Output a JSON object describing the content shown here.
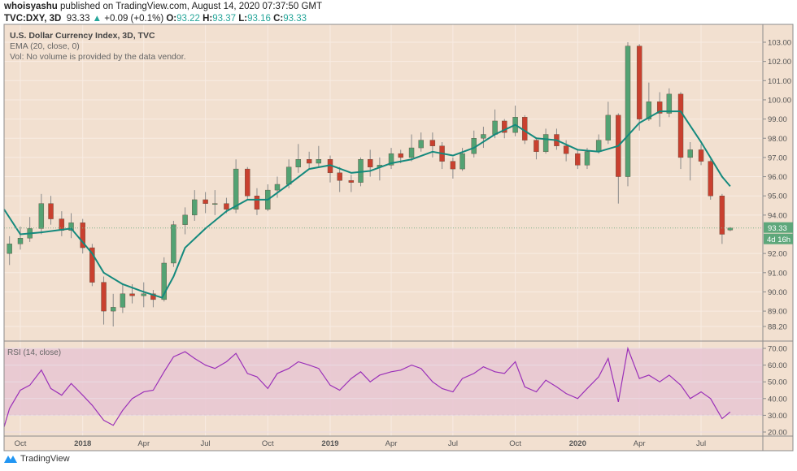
{
  "header": {
    "author": "whoisyashu",
    "published": "published on TradingView.com, August 14, 2020 07:37:50 GMT",
    "symbol": "TVC:DXY, 3D",
    "last": "93.33",
    "change": "+0.09 (+0.1%)",
    "o_label": "O:",
    "o": "93.22",
    "h_label": "H:",
    "h": "93.37",
    "l_label": "L:",
    "l": "93.16",
    "c_label": "C:",
    "c": "93.33"
  },
  "legend": {
    "title": "U.S. Dollar Currency Index, 3D, TVC",
    "ema": "EMA (20, close, 0)",
    "vol": "Vol: No volume is provided by the data vendor."
  },
  "rsi_label": "RSI (14, close)",
  "price_label": "93.33",
  "countdown_label": "4d 16h",
  "footer": {
    "brand": "TradingView"
  },
  "colors": {
    "background": "#f2e0d0",
    "up": "#53a273",
    "down": "#c9402f",
    "ema": "#14897d",
    "rsi": "#9b30b8",
    "rsi_band": "#e7c6d2"
  },
  "chart_data": [
    {
      "type": "candlestick",
      "title": "U.S. Dollar Currency Index, 3D, TVC",
      "ylim": [
        88.2,
        103.0
      ],
      "y_ticks": [
        "103.00",
        "102.00",
        "101.00",
        "100.00",
        "99.00",
        "98.00",
        "97.00",
        "96.00",
        "95.00",
        "94.00",
        "92.00",
        "91.00",
        "90.00",
        "89.00",
        "88.20"
      ],
      "x_ticks": [
        {
          "date": "2017-10-01",
          "label": "Oct"
        },
        {
          "date": "2018-01-01",
          "label": "2018"
        },
        {
          "date": "2018-04-01",
          "label": "Apr"
        },
        {
          "date": "2018-07-01",
          "label": "Jul"
        },
        {
          "date": "2018-10-01",
          "label": "Oct"
        },
        {
          "date": "2019-01-01",
          "label": "2019"
        },
        {
          "date": "2019-04-01",
          "label": "Apr"
        },
        {
          "date": "2019-07-01",
          "label": "Jul"
        },
        {
          "date": "2019-10-01",
          "label": "Oct"
        },
        {
          "date": "2020-01-01",
          "label": "2020"
        },
        {
          "date": "2020-04-01",
          "label": "Apr"
        },
        {
          "date": "2020-07-01",
          "label": "Jul"
        }
      ],
      "grid": true,
      "last_price": 93.33,
      "candles": [
        [
          "2017-09-15",
          92.0,
          92.9,
          91.4,
          92.5
        ],
        [
          "2017-10-01",
          92.5,
          93.4,
          92.2,
          92.8
        ],
        [
          "2017-10-15",
          92.8,
          93.9,
          92.6,
          93.3
        ],
        [
          "2017-11-01",
          93.3,
          95.1,
          93.0,
          94.6
        ],
        [
          "2017-11-15",
          94.6,
          95.0,
          93.5,
          93.8
        ],
        [
          "2017-12-01",
          93.8,
          94.2,
          92.9,
          93.2
        ],
        [
          "2017-12-15",
          93.2,
          94.1,
          92.8,
          93.6
        ],
        [
          "2018-01-01",
          93.6,
          93.8,
          92.0,
          92.3
        ],
        [
          "2018-01-15",
          92.3,
          92.5,
          90.3,
          90.5
        ],
        [
          "2018-02-01",
          90.5,
          90.8,
          88.3,
          89.0
        ],
        [
          "2018-02-15",
          89.0,
          89.9,
          88.2,
          89.2
        ],
        [
          "2018-03-01",
          89.2,
          90.4,
          88.9,
          89.9
        ],
        [
          "2018-03-15",
          89.9,
          90.4,
          89.4,
          89.8
        ],
        [
          "2018-04-01",
          89.8,
          90.5,
          89.2,
          89.9
        ],
        [
          "2018-04-15",
          89.9,
          90.1,
          89.2,
          89.6
        ],
        [
          "2018-05-01",
          89.6,
          91.8,
          89.5,
          91.5
        ],
        [
          "2018-05-15",
          91.5,
          93.7,
          91.3,
          93.5
        ],
        [
          "2018-06-01",
          93.5,
          94.4,
          93.0,
          94.0
        ],
        [
          "2018-06-15",
          94.0,
          95.3,
          93.7,
          94.8
        ],
        [
          "2018-07-01",
          94.8,
          95.2,
          94.1,
          94.6
        ],
        [
          "2018-07-15",
          94.6,
          95.3,
          94.0,
          94.6
        ],
        [
          "2018-08-01",
          94.6,
          94.9,
          94.1,
          94.3
        ],
        [
          "2018-08-15",
          94.3,
          96.9,
          94.1,
          96.4
        ],
        [
          "2018-09-01",
          96.4,
          96.5,
          94.8,
          95.0
        ],
        [
          "2018-09-15",
          95.0,
          95.4,
          94.0,
          94.3
        ],
        [
          "2018-10-01",
          94.3,
          95.6,
          94.2,
          95.3
        ],
        [
          "2018-10-15",
          95.3,
          96.0,
          94.9,
          95.6
        ],
        [
          "2018-11-01",
          95.6,
          96.9,
          95.4,
          96.5
        ],
        [
          "2018-11-15",
          96.5,
          97.7,
          96.2,
          96.9
        ],
        [
          "2018-12-01",
          96.9,
          97.3,
          96.4,
          96.7
        ],
        [
          "2018-12-15",
          96.7,
          97.6,
          96.5,
          96.9
        ],
        [
          "2019-01-01",
          96.9,
          97.1,
          95.7,
          96.2
        ],
        [
          "2019-01-15",
          96.2,
          96.5,
          95.2,
          95.8
        ],
        [
          "2019-02-01",
          95.8,
          96.1,
          95.2,
          95.7
        ],
        [
          "2019-02-15",
          95.7,
          97.0,
          95.5,
          96.9
        ],
        [
          "2019-03-01",
          96.9,
          97.4,
          96.0,
          96.5
        ],
        [
          "2019-03-15",
          96.5,
          97.0,
          95.8,
          96.6
        ],
        [
          "2019-04-01",
          96.6,
          97.5,
          96.4,
          97.2
        ],
        [
          "2019-04-15",
          97.2,
          97.4,
          96.7,
          97.0
        ],
        [
          "2019-05-01",
          97.0,
          98.2,
          96.8,
          97.5
        ],
        [
          "2019-05-15",
          97.5,
          98.3,
          97.3,
          97.9
        ],
        [
          "2019-06-01",
          97.9,
          98.3,
          97.0,
          97.6
        ],
        [
          "2019-06-15",
          97.6,
          97.8,
          96.4,
          96.8
        ],
        [
          "2019-07-01",
          96.8,
          97.0,
          95.9,
          96.4
        ],
        [
          "2019-07-15",
          96.4,
          97.5,
          96.3,
          97.2
        ],
        [
          "2019-08-01",
          97.2,
          98.4,
          97.0,
          98.0
        ],
        [
          "2019-08-15",
          98.0,
          98.6,
          97.5,
          98.2
        ],
        [
          "2019-09-01",
          98.2,
          99.5,
          98.0,
          98.9
        ],
        [
          "2019-09-15",
          98.9,
          99.0,
          98.0,
          98.3
        ],
        [
          "2019-10-01",
          98.3,
          99.7,
          98.1,
          99.1
        ],
        [
          "2019-10-15",
          99.1,
          99.2,
          97.7,
          97.9
        ],
        [
          "2019-11-01",
          97.9,
          98.0,
          96.9,
          97.3
        ],
        [
          "2019-11-15",
          97.3,
          98.5,
          97.2,
          98.2
        ],
        [
          "2019-12-01",
          98.2,
          98.5,
          97.4,
          97.6
        ],
        [
          "2019-12-15",
          97.6,
          97.9,
          96.8,
          97.2
        ],
        [
          "2020-01-01",
          97.2,
          97.4,
          96.4,
          96.6
        ],
        [
          "2020-01-15",
          96.6,
          97.5,
          96.4,
          97.3
        ],
        [
          "2020-02-01",
          97.3,
          98.2,
          97.2,
          97.9
        ],
        [
          "2020-02-15",
          97.9,
          99.9,
          97.7,
          99.2
        ],
        [
          "2020-03-01",
          99.2,
          99.3,
          94.6,
          96.0
        ],
        [
          "2020-03-15",
          96.0,
          103.0,
          95.5,
          102.8
        ],
        [
          "2020-04-01",
          102.8,
          102.9,
          98.4,
          99.0
        ],
        [
          "2020-04-15",
          99.0,
          100.9,
          98.9,
          99.9
        ],
        [
          "2020-05-01",
          99.9,
          100.4,
          98.6,
          99.3
        ],
        [
          "2020-05-15",
          99.3,
          100.6,
          99.1,
          100.3
        ],
        [
          "2020-06-01",
          100.3,
          100.4,
          96.4,
          97.0
        ],
        [
          "2020-06-15",
          97.0,
          97.8,
          95.8,
          97.4
        ],
        [
          "2020-07-01",
          97.4,
          97.7,
          96.6,
          96.8
        ],
        [
          "2020-07-15",
          96.8,
          96.9,
          94.8,
          95.0
        ],
        [
          "2020-08-01",
          95.0,
          95.1,
          92.5,
          93.0
        ],
        [
          "2020-08-13",
          93.22,
          93.37,
          93.16,
          93.33
        ]
      ],
      "ema": {
        "name": "EMA (20, close, 0)",
        "points": [
          [
            "2017-09-07",
            94.3
          ],
          [
            "2017-10-01",
            93.0
          ],
          [
            "2017-11-01",
            93.1
          ],
          [
            "2017-12-15",
            93.3
          ],
          [
            "2018-01-15",
            92.0
          ],
          [
            "2018-02-01",
            91.0
          ],
          [
            "2018-03-01",
            90.4
          ],
          [
            "2018-04-01",
            90.0
          ],
          [
            "2018-04-28",
            89.7
          ],
          [
            "2018-05-15",
            90.8
          ],
          [
            "2018-06-01",
            92.3
          ],
          [
            "2018-07-01",
            93.3
          ],
          [
            "2018-08-01",
            94.2
          ],
          [
            "2018-09-01",
            94.8
          ],
          [
            "2018-10-01",
            94.8
          ],
          [
            "2018-11-01",
            95.6
          ],
          [
            "2018-12-01",
            96.4
          ],
          [
            "2019-01-01",
            96.6
          ],
          [
            "2019-02-01",
            96.2
          ],
          [
            "2019-03-01",
            96.3
          ],
          [
            "2019-04-01",
            96.7
          ],
          [
            "2019-05-01",
            96.9
          ],
          [
            "2019-06-01",
            97.3
          ],
          [
            "2019-07-01",
            97.1
          ],
          [
            "2019-08-01",
            97.5
          ],
          [
            "2019-09-01",
            98.2
          ],
          [
            "2019-10-01",
            98.7
          ],
          [
            "2019-11-01",
            98.0
          ],
          [
            "2019-12-01",
            97.9
          ],
          [
            "2020-01-01",
            97.4
          ],
          [
            "2020-02-01",
            97.3
          ],
          [
            "2020-03-01",
            97.6
          ],
          [
            "2020-04-01",
            98.8
          ],
          [
            "2020-05-01",
            99.4
          ],
          [
            "2020-06-01",
            99.4
          ],
          [
            "2020-07-01",
            97.8
          ],
          [
            "2020-08-01",
            96.0
          ],
          [
            "2020-08-13",
            95.5
          ]
        ]
      }
    },
    {
      "type": "line",
      "title": "RSI (14, close)",
      "ylim": [
        20,
        70
      ],
      "y_ticks": [
        "70.00",
        "60.00",
        "50.00",
        "40.00",
        "30.00",
        "20.00"
      ],
      "band": [
        30,
        70
      ],
      "points": [
        [
          "2017-09-07",
          23
        ],
        [
          "2017-09-15",
          34
        ],
        [
          "2017-10-01",
          45
        ],
        [
          "2017-10-15",
          48
        ],
        [
          "2017-11-01",
          57
        ],
        [
          "2017-11-15",
          46
        ],
        [
          "2017-12-01",
          42
        ],
        [
          "2017-12-15",
          49
        ],
        [
          "2018-01-01",
          42
        ],
        [
          "2018-01-15",
          36
        ],
        [
          "2018-02-01",
          27
        ],
        [
          "2018-02-15",
          24
        ],
        [
          "2018-03-01",
          33
        ],
        [
          "2018-03-15",
          40
        ],
        [
          "2018-04-01",
          44
        ],
        [
          "2018-04-15",
          45
        ],
        [
          "2018-05-01",
          56
        ],
        [
          "2018-05-15",
          65
        ],
        [
          "2018-06-01",
          68
        ],
        [
          "2018-06-15",
          64
        ],
        [
          "2018-07-01",
          60
        ],
        [
          "2018-07-15",
          58
        ],
        [
          "2018-08-01",
          62
        ],
        [
          "2018-08-15",
          67
        ],
        [
          "2018-09-01",
          55
        ],
        [
          "2018-09-15",
          53
        ],
        [
          "2018-10-01",
          46
        ],
        [
          "2018-10-15",
          55
        ],
        [
          "2018-11-01",
          58
        ],
        [
          "2018-11-15",
          62
        ],
        [
          "2018-12-01",
          60
        ],
        [
          "2018-12-15",
          58
        ],
        [
          "2019-01-01",
          48
        ],
        [
          "2019-01-15",
          45
        ],
        [
          "2019-02-01",
          52
        ],
        [
          "2019-02-15",
          56
        ],
        [
          "2019-03-01",
          50
        ],
        [
          "2019-03-15",
          54
        ],
        [
          "2019-04-01",
          56
        ],
        [
          "2019-04-15",
          57
        ],
        [
          "2019-05-01",
          60
        ],
        [
          "2019-05-15",
          58
        ],
        [
          "2019-06-01",
          50
        ],
        [
          "2019-06-15",
          46
        ],
        [
          "2019-07-01",
          44
        ],
        [
          "2019-07-15",
          52
        ],
        [
          "2019-08-01",
          55
        ],
        [
          "2019-08-15",
          59
        ],
        [
          "2019-09-01",
          56
        ],
        [
          "2019-09-15",
          55
        ],
        [
          "2019-10-01",
          62
        ],
        [
          "2019-10-15",
          47
        ],
        [
          "2019-11-01",
          44
        ],
        [
          "2019-11-15",
          51
        ],
        [
          "2019-12-01",
          47
        ],
        [
          "2019-12-15",
          43
        ],
        [
          "2020-01-01",
          40
        ],
        [
          "2020-01-15",
          46
        ],
        [
          "2020-02-01",
          53
        ],
        [
          "2020-02-15",
          64
        ],
        [
          "2020-03-01",
          38
        ],
        [
          "2020-03-15",
          70
        ],
        [
          "2020-04-01",
          52
        ],
        [
          "2020-04-15",
          54
        ],
        [
          "2020-05-01",
          50
        ],
        [
          "2020-05-15",
          54
        ],
        [
          "2020-06-01",
          48
        ],
        [
          "2020-06-15",
          40
        ],
        [
          "2020-07-01",
          44
        ],
        [
          "2020-07-15",
          40
        ],
        [
          "2020-08-01",
          28
        ],
        [
          "2020-08-13",
          32
        ]
      ]
    }
  ]
}
